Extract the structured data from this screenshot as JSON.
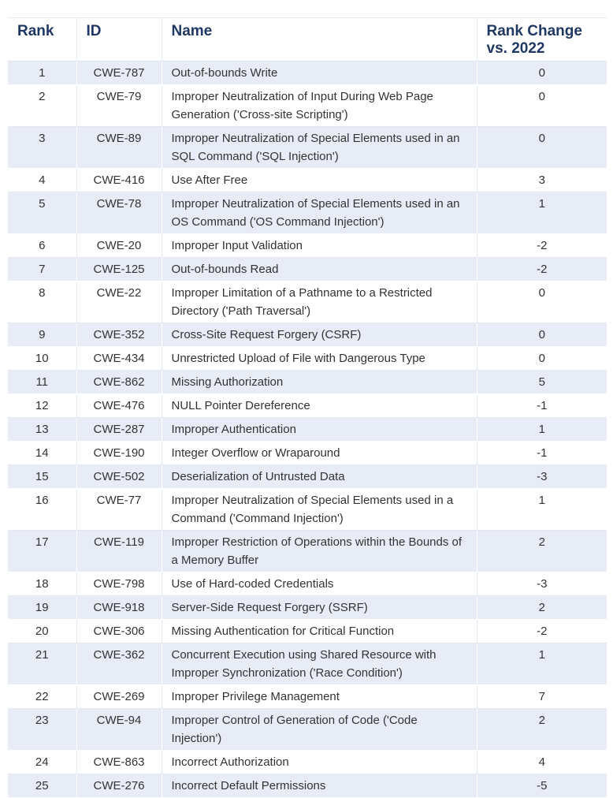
{
  "table": {
    "headers": {
      "rank": "Rank",
      "id": "ID",
      "name": "Name",
      "change": "Rank Change vs. 2022"
    },
    "rows": [
      {
        "rank": "1",
        "id": "CWE-787",
        "name": "Out-of-bounds Write",
        "change": "0"
      },
      {
        "rank": "2",
        "id": "CWE-79",
        "name": "Improper Neutralization of Input During Web Page Generation ('Cross-site Scripting')",
        "change": "0"
      },
      {
        "rank": "3",
        "id": "CWE-89",
        "name": "Improper Neutralization of Special Elements used in an SQL Command ('SQL Injection')",
        "change": "0"
      },
      {
        "rank": "4",
        "id": "CWE-416",
        "name": "Use After Free",
        "change": "3"
      },
      {
        "rank": "5",
        "id": "CWE-78",
        "name": "Improper Neutralization of Special Elements used in an OS Command ('OS Command Injection')",
        "change": "1"
      },
      {
        "rank": "6",
        "id": "CWE-20",
        "name": "Improper Input Validation",
        "change": "-2"
      },
      {
        "rank": "7",
        "id": "CWE-125",
        "name": "Out-of-bounds Read",
        "change": "-2"
      },
      {
        "rank": "8",
        "id": "CWE-22",
        "name": "Improper Limitation of a Pathname to a Restricted Directory ('Path Traversal')",
        "change": "0"
      },
      {
        "rank": "9",
        "id": "CWE-352",
        "name": "Cross-Site Request Forgery (CSRF)",
        "change": "0"
      },
      {
        "rank": "10",
        "id": "CWE-434",
        "name": "Unrestricted Upload of File with Dangerous Type",
        "change": "0"
      },
      {
        "rank": "11",
        "id": "CWE-862",
        "name": "Missing Authorization",
        "change": "5"
      },
      {
        "rank": "12",
        "id": "CWE-476",
        "name": "NULL Pointer Dereference",
        "change": "-1"
      },
      {
        "rank": "13",
        "id": "CWE-287",
        "name": "Improper Authentication",
        "change": "1"
      },
      {
        "rank": "14",
        "id": "CWE-190",
        "name": "Integer Overflow or Wraparound",
        "change": "-1"
      },
      {
        "rank": "15",
        "id": "CWE-502",
        "name": "Deserialization of Untrusted Data",
        "change": "-3"
      },
      {
        "rank": "16",
        "id": "CWE-77",
        "name": "Improper Neutralization of Special Elements used in a Command ('Command Injection')",
        "change": "1"
      },
      {
        "rank": "17",
        "id": "CWE-119",
        "name": "Improper Restriction of Operations within the Bounds of a Memory Buffer",
        "change": "2"
      },
      {
        "rank": "18",
        "id": "CWE-798",
        "name": "Use of Hard-coded Credentials",
        "change": "-3"
      },
      {
        "rank": "19",
        "id": "CWE-918",
        "name": "Server-Side Request Forgery (SSRF)",
        "change": "2"
      },
      {
        "rank": "20",
        "id": "CWE-306",
        "name": "Missing Authentication for Critical Function",
        "change": "-2"
      },
      {
        "rank": "21",
        "id": "CWE-362",
        "name": "Concurrent Execution using Shared Resource with Improper Synchronization ('Race Condition')",
        "change": "1"
      },
      {
        "rank": "22",
        "id": "CWE-269",
        "name": "Improper Privilege Management",
        "change": "7"
      },
      {
        "rank": "23",
        "id": "CWE-94",
        "name": "Improper Control of Generation of Code ('Code Injection')",
        "change": "2"
      },
      {
        "rank": "24",
        "id": "CWE-863",
        "name": "Incorrect Authorization",
        "change": "4"
      },
      {
        "rank": "25",
        "id": "CWE-276",
        "name": "Incorrect Default Permissions",
        "change": "-5"
      }
    ]
  }
}
